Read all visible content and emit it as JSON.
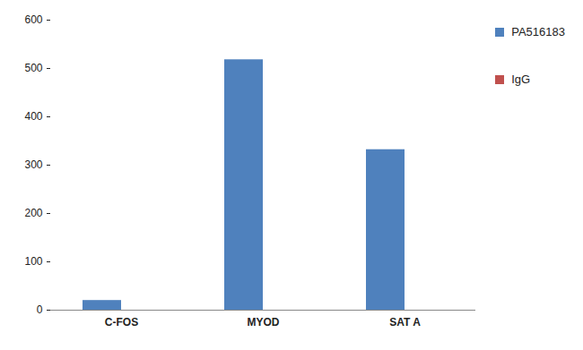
{
  "chart_data": {
    "type": "bar",
    "categories": [
      "C-FOS",
      "MYOD",
      "SAT A"
    ],
    "series": [
      {
        "name": "PA516183",
        "color": "#4f81bd",
        "values": [
          20,
          518,
          332
        ]
      },
      {
        "name": "IgG",
        "color": "#c0504d",
        "values": [
          0,
          0,
          0
        ]
      }
    ],
    "ylim": [
      0,
      600
    ],
    "yticks": [
      0,
      100,
      200,
      300,
      400,
      500,
      600
    ],
    "grid": false,
    "legend": "top-right"
  }
}
